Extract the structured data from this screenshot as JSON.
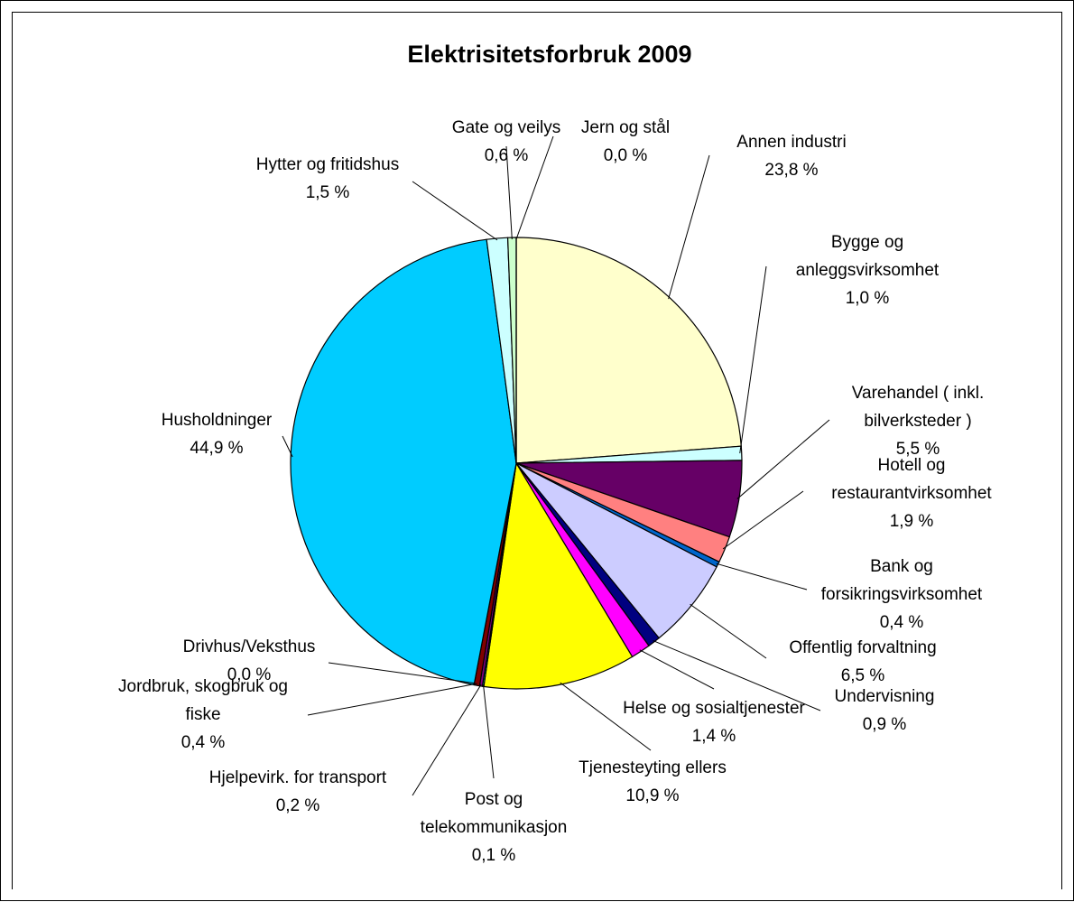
{
  "chart_data": {
    "type": "pie",
    "title": "Elektrisitetsforbruk 2009",
    "slices": [
      {
        "label": [
          "Annen industri"
        ],
        "value_text": "23,8 %",
        "value": 23.8,
        "color": "#FFFFCC"
      },
      {
        "label": [
          "Bygge og",
          "anleggsvirksomhet"
        ],
        "value_text": "1,0 %",
        "value": 1.0,
        "color": "#CCFFFF"
      },
      {
        "label": [
          "Varehandel ( inkl.",
          "bilverksteder )"
        ],
        "value_text": "5,5 %",
        "value": 5.5,
        "color": "#660066"
      },
      {
        "label": [
          "Hotell og",
          "restaurantvirksomhet"
        ],
        "value_text": "1,9 %",
        "value": 1.9,
        "color": "#FF8080"
      },
      {
        "label": [
          "Bank og",
          "forsikringsvirksomhet"
        ],
        "value_text": "0,4 %",
        "value": 0.4,
        "color": "#0066CC"
      },
      {
        "label": [
          "Offentlig forvaltning"
        ],
        "value_text": "6,5 %",
        "value": 6.5,
        "color": "#CCCCFF"
      },
      {
        "label": [
          "Undervisning"
        ],
        "value_text": "0,9 %",
        "value": 0.9,
        "color": "#000080"
      },
      {
        "label": [
          "Helse og sosialtjenester"
        ],
        "value_text": "1,4 %",
        "value": 1.4,
        "color": "#FF00FF"
      },
      {
        "label": [
          "Tjenesteyting ellers"
        ],
        "value_text": "10,9 %",
        "value": 10.9,
        "color": "#FFFF00"
      },
      {
        "label": [
          "Post og",
          "telekommunikasjon"
        ],
        "value_text": "0,1 %",
        "value": 0.1,
        "color": "#00FFFF"
      },
      {
        "label": [
          "Hjelpevirk. for transport"
        ],
        "value_text": "0,2 %",
        "value": 0.2,
        "color": "#800080"
      },
      {
        "label": [
          "Jordbruk, skogbruk og",
          "fiske"
        ],
        "value_text": "0,4 %",
        "value": 0.4,
        "color": "#800000"
      },
      {
        "label": [
          "Drivhus/Veksthus"
        ],
        "value_text": "0,0 %",
        "value": 0.0,
        "color": "#008080"
      },
      {
        "label": [
          "Husholdninger"
        ],
        "value_text": "44,9 %",
        "value": 44.9,
        "color": "#00CCFF"
      },
      {
        "label": [
          "Hytter og fritidshus"
        ],
        "value_text": "1,5 %",
        "value": 1.5,
        "color": "#CCFFFF"
      },
      {
        "label": [
          "Gate og veilys"
        ],
        "value_text": "0,6 %",
        "value": 0.6,
        "color": "#CCFFCC"
      },
      {
        "label": [
          "Jern og stål"
        ],
        "value_text": "0,0 %",
        "value": 0.0,
        "color": "#FFFF99"
      }
    ]
  }
}
